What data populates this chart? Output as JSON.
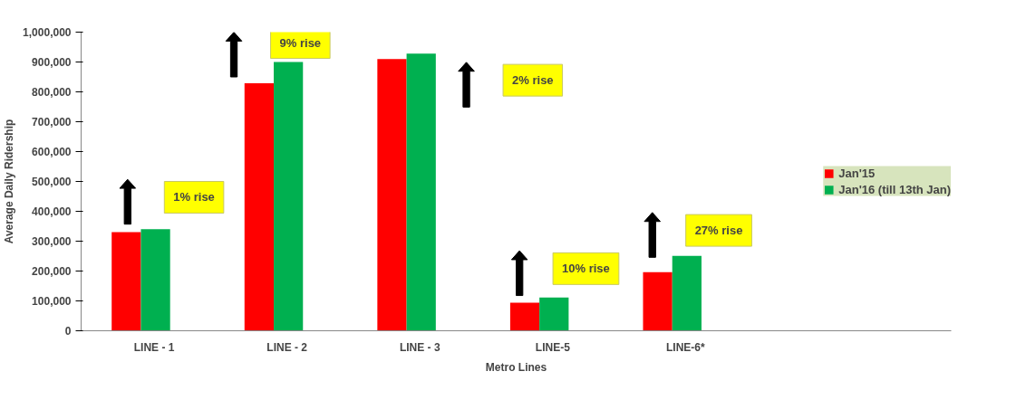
{
  "chart_data": {
    "type": "bar",
    "xlabel": "Metro Lines",
    "ylabel": "Average Daily Ridership",
    "categories": [
      "LINE - 1",
      "LINE - 2",
      "LINE - 3",
      "LINE-5",
      "LINE-6*"
    ],
    "series": [
      {
        "name": "Jan'15",
        "color": "#ff0000",
        "values": [
          330000,
          829000,
          910000,
          94000,
          196000
        ]
      },
      {
        "name": "Jan'16 (till 13th Jan)",
        "color": "#00b050",
        "values": [
          340000,
          900000,
          928000,
          111000,
          251000
        ]
      }
    ],
    "ylim": [
      0,
      1000000
    ],
    "yticks": [
      {
        "value": 0,
        "label": "0"
      },
      {
        "value": 100000,
        "label": "100,000"
      },
      {
        "value": 200000,
        "label": "200,000"
      },
      {
        "value": 300000,
        "label": "300,000"
      },
      {
        "value": 400000,
        "label": "400,000"
      },
      {
        "value": 500000,
        "label": "500,000"
      },
      {
        "value": 600000,
        "label": "600,000"
      },
      {
        "value": 700000,
        "label": "700,000"
      },
      {
        "value": 800000,
        "label": "800,000"
      },
      {
        "value": 900000,
        "label": "900,000"
      },
      {
        "value": 1000000,
        "label": "1,000,000"
      }
    ],
    "grid": false,
    "legend": "right",
    "annotations": [
      "1% rise",
      "9% rise",
      "2% rise",
      "10% rise",
      "27% rise"
    ]
  }
}
